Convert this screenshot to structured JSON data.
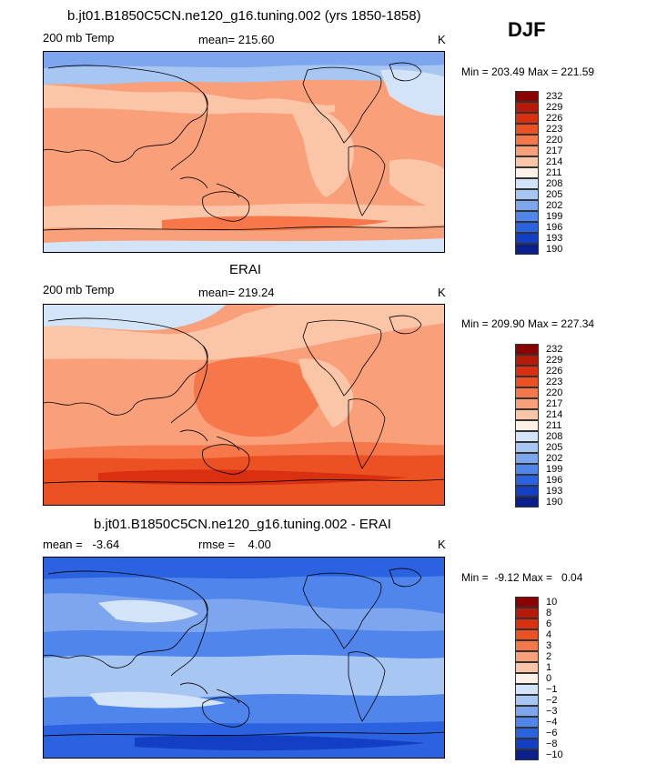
{
  "season": "DJF",
  "chart_data": [
    {
      "type": "heatmap",
      "title": "b.jt01.B1850C5CN.ne120_g16.tuning.002 (yrs 1850-1858)",
      "left_label": "200 mb Temp",
      "center_label": "mean= 215.60",
      "units": "K",
      "min_max": "Min = 203.49 Max = 221.59",
      "levels": [
        "232",
        "229",
        "226",
        "223",
        "220",
        "217",
        "214",
        "211",
        "208",
        "205",
        "202",
        "199",
        "196",
        "193",
        "190"
      ],
      "colors": [
        "#8b0000",
        "#b81a0a",
        "#d83010",
        "#ec5124",
        "#f6784a",
        "#f9a07a",
        "#fbc5a8",
        "#fdf0e6",
        "#d3e4f8",
        "#a8c6f2",
        "#7ea6ee",
        "#5085ec",
        "#2a62e0",
        "#123fc3",
        "#0a1e8c"
      ]
    },
    {
      "type": "heatmap",
      "title": "ERAI",
      "left_label": "200 mb Temp",
      "center_label": "mean= 219.24",
      "units": "K",
      "min_max": "Min = 209.90 Max = 227.34",
      "levels": [
        "232",
        "229",
        "226",
        "223",
        "220",
        "217",
        "214",
        "211",
        "208",
        "205",
        "202",
        "199",
        "196",
        "193",
        "190"
      ],
      "colors": [
        "#8b0000",
        "#b81a0a",
        "#d83010",
        "#ec5124",
        "#f6784a",
        "#f9a07a",
        "#fbc5a8",
        "#fdf0e6",
        "#d3e4f8",
        "#a8c6f2",
        "#7ea6ee",
        "#5085ec",
        "#2a62e0",
        "#123fc3",
        "#0a1e8c"
      ]
    },
    {
      "type": "heatmap",
      "title": "b.jt01.B1850C5CN.ne120_g16.tuning.002 - ERAI",
      "left_label": "mean =   -3.64",
      "center_label": "rmse =    4.00",
      "units": "K",
      "min_max": "Min =  -9.12 Max =   0.04",
      "levels": [
        "10",
        "8",
        "6",
        "4",
        "3",
        "2",
        "1",
        "0",
        "−1",
        "−2",
        "−3",
        "−4",
        "−6",
        "−8",
        "−10"
      ],
      "colors": [
        "#8b0000",
        "#b81a0a",
        "#d83010",
        "#ec5124",
        "#f6784a",
        "#f9a07a",
        "#fbc5a8",
        "#fdf0e6",
        "#d3e4f8",
        "#a8c6f2",
        "#7ea6ee",
        "#5085ec",
        "#2a62e0",
        "#123fc3",
        "#0a1e8c"
      ]
    }
  ]
}
